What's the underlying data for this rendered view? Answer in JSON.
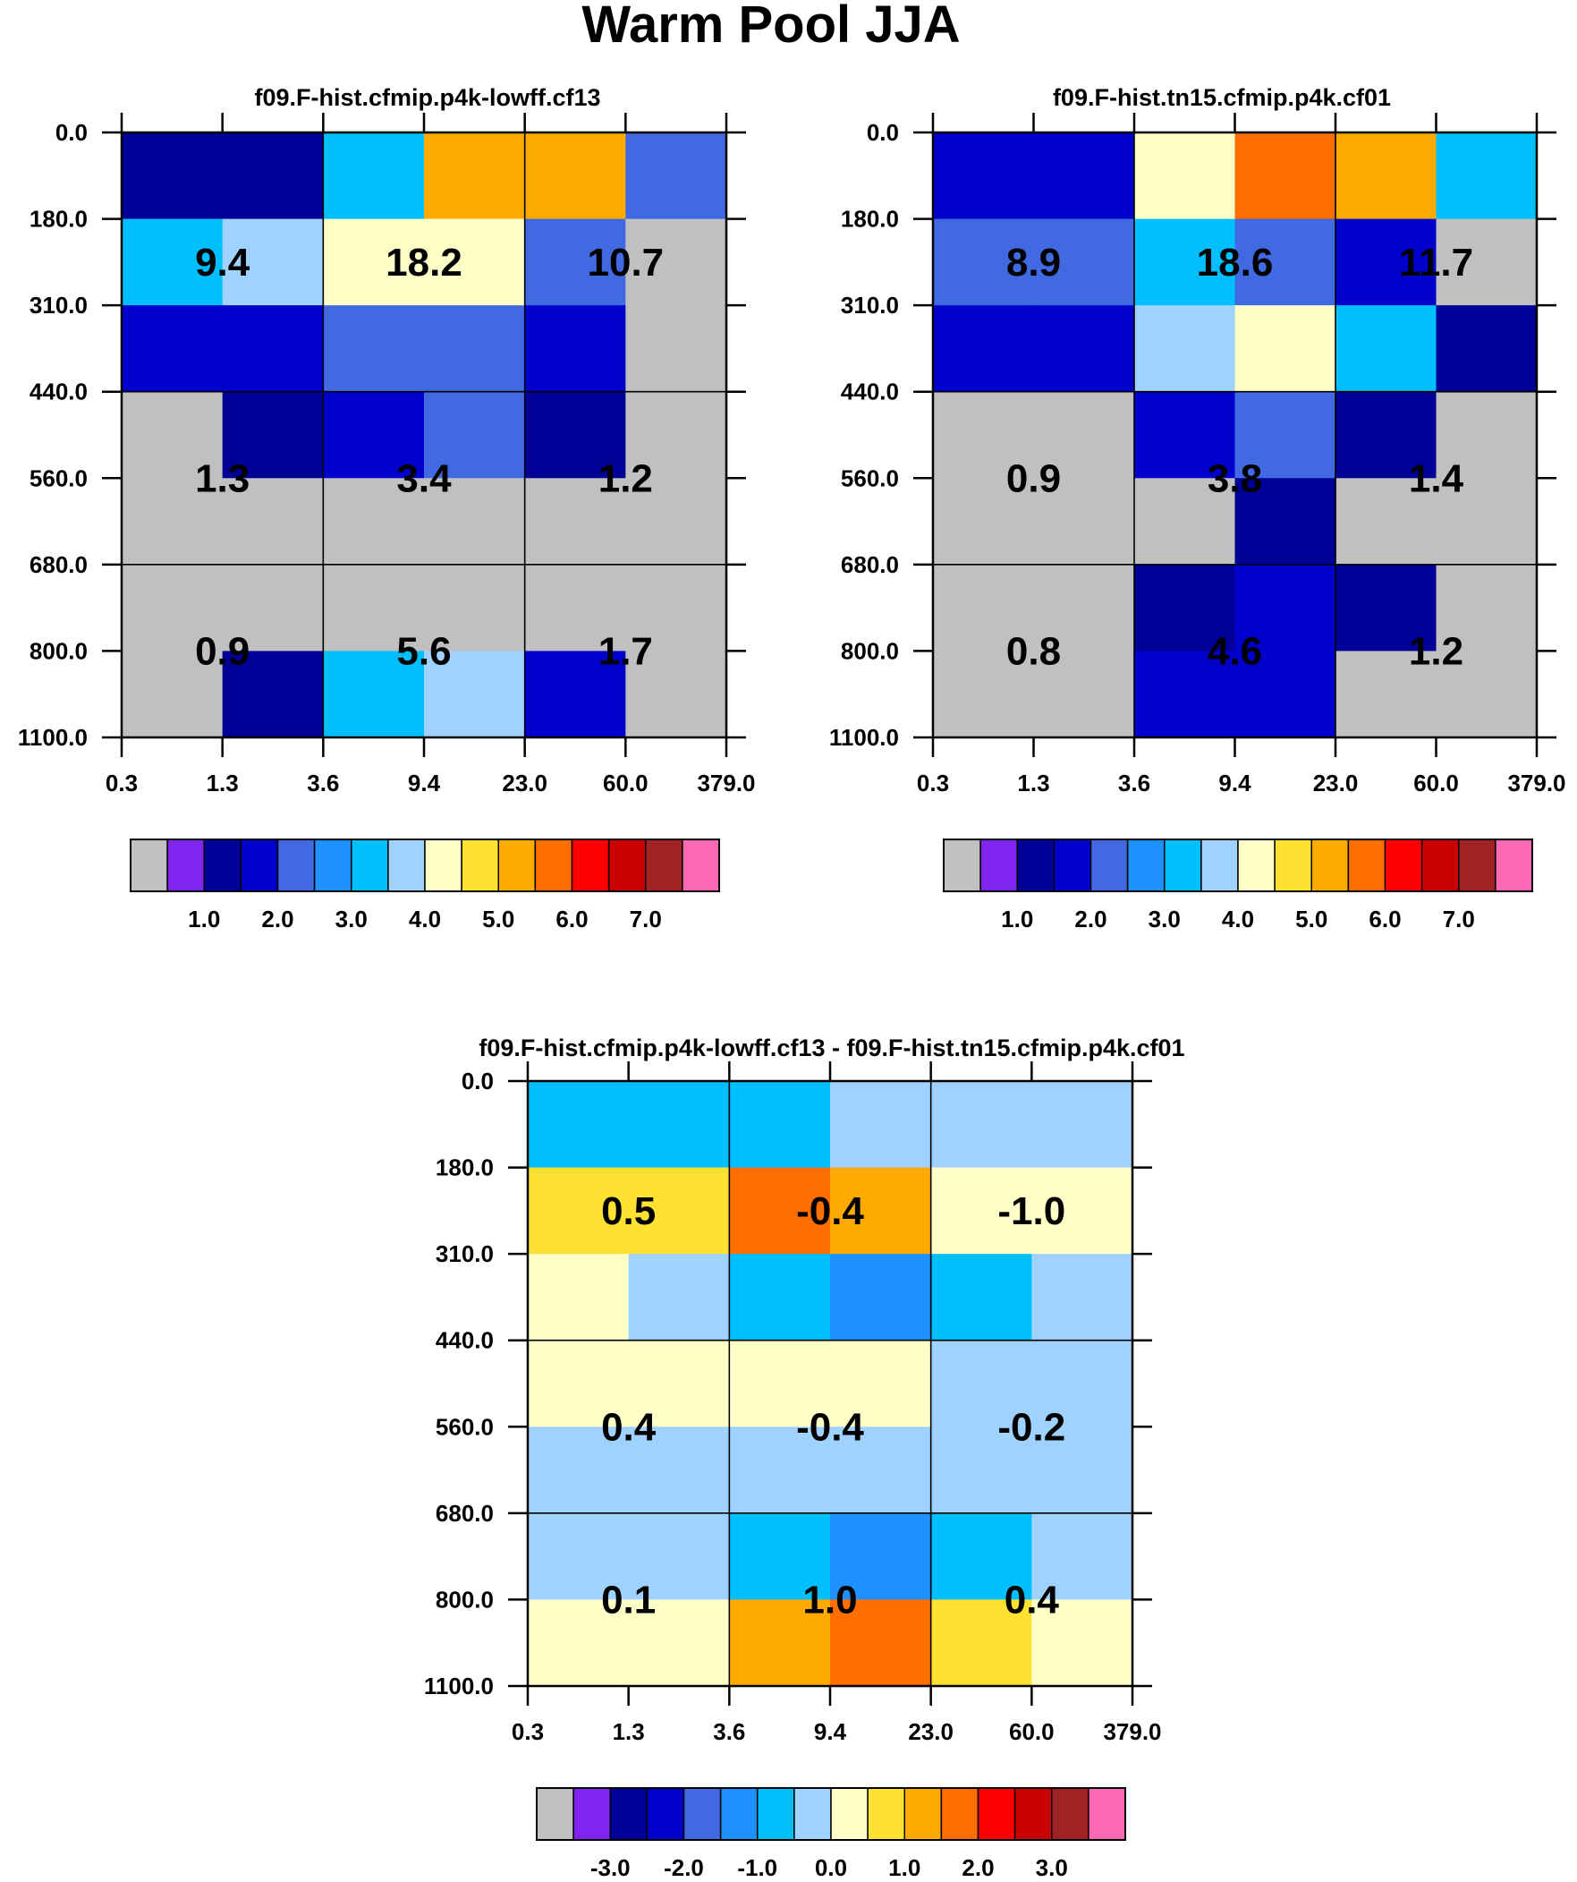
{
  "chart_data": {
    "type": "heatmap",
    "title": "Warm Pool JJA",
    "x_ticks": [
      "0.3",
      "1.3",
      "3.6",
      "9.4",
      "23.0",
      "60.0",
      "379.0"
    ],
    "y_ticks": [
      "0.0",
      "180.0",
      "310.0",
      "440.0",
      "560.0",
      "680.0",
      "800.0",
      "1100.0"
    ],
    "panels": [
      {
        "subtitle": "f09.F-hist.cfmip.p4k-lowff.cf13",
        "cells": [
          [
            1.25,
            1.25,
            3.25,
            5.25,
            5.25,
            2.25
          ],
          [
            3.25,
            3.75,
            4.25,
            4.25,
            2.25,
            0.25
          ],
          [
            1.75,
            1.75,
            2.25,
            2.25,
            1.75,
            0.25
          ],
          [
            0.25,
            1.25,
            1.75,
            2.25,
            1.25,
            0.25
          ],
          [
            0.25,
            0.25,
            0.25,
            0.25,
            0.25,
            0.25
          ],
          [
            0.25,
            0.25,
            0.25,
            0.25,
            0.25,
            0.25
          ],
          [
            0.25,
            1.25,
            3.25,
            3.75,
            1.75,
            0.25
          ]
        ],
        "labels": [
          [
            "9.4",
            "18.2",
            "10.7"
          ],
          [
            "1.3",
            "3.4",
            "1.2"
          ],
          [
            "0.9",
            "5.6",
            "1.7"
          ]
        ]
      },
      {
        "subtitle": "f09.F-hist.tn15.cfmip.p4k.cf01",
        "cells": [
          [
            1.75,
            1.75,
            4.25,
            5.75,
            5.25,
            3.25
          ],
          [
            2.25,
            2.25,
            3.25,
            2.25,
            1.75,
            0.25
          ],
          [
            1.75,
            1.75,
            3.75,
            4.25,
            3.25,
            1.25
          ],
          [
            0.25,
            0.25,
            1.75,
            2.25,
            1.25,
            0.25
          ],
          [
            0.25,
            0.25,
            0.25,
            1.25,
            0.25,
            0.25
          ],
          [
            0.25,
            0.25,
            1.25,
            1.75,
            1.25,
            0.25
          ],
          [
            0.25,
            0.25,
            1.75,
            1.75,
            0.25,
            0.25
          ]
        ],
        "labels": [
          [
            "8.9",
            "18.6",
            "11.7"
          ],
          [
            "0.9",
            "3.8",
            "1.4"
          ],
          [
            "0.8",
            "4.6",
            "1.2"
          ]
        ]
      },
      {
        "subtitle": "f09.F-hist.cfmip.p4k-lowff.cf13 - f09.F-hist.tn15.cfmip.p4k.cf01",
        "cells": [
          [
            -0.75,
            -0.75,
            -0.75,
            -0.25,
            -0.25,
            -0.25
          ],
          [
            0.75,
            0.75,
            1.75,
            1.25,
            0.25,
            0.25
          ],
          [
            0.25,
            -0.25,
            -0.75,
            -1.25,
            -0.75,
            -0.25
          ],
          [
            0.25,
            0.25,
            0.25,
            0.25,
            -0.25,
            -0.25
          ],
          [
            -0.25,
            -0.25,
            -0.25,
            -0.25,
            -0.25,
            -0.25
          ],
          [
            -0.25,
            -0.25,
            -0.75,
            -1.25,
            -0.75,
            -0.25
          ],
          [
            0.25,
            0.25,
            1.25,
            1.75,
            0.75,
            0.25
          ]
        ],
        "labels": [
          [
            "0.5",
            "-0.4",
            "-1.0"
          ],
          [
            "0.4",
            "-0.4",
            "-0.2"
          ],
          [
            "0.1",
            "1.0",
            "0.4"
          ]
        ]
      }
    ],
    "colorbars": [
      {
        "ticks": [
          "1.0",
          "2.0",
          "3.0",
          "4.0",
          "5.0",
          "6.0",
          "7.0"
        ],
        "colors": [
          "#c0c0c0",
          "#8224f0",
          "#000096",
          "#0000cd",
          "#4169e1",
          "#1e90ff",
          "#00bfff",
          "#a0d2ff",
          "#ffffc8",
          "#ffe132",
          "#ffaa00",
          "#ff6e00",
          "#ff0000",
          "#c80000",
          "#a02323",
          "#ff69b4"
        ]
      },
      {
        "ticks": [
          "1.0",
          "2.0",
          "3.0",
          "4.0",
          "5.0",
          "6.0",
          "7.0"
        ],
        "colors": [
          "#c0c0c0",
          "#8224f0",
          "#000096",
          "#0000cd",
          "#4169e1",
          "#1e90ff",
          "#00bfff",
          "#a0d2ff",
          "#ffffc8",
          "#ffe132",
          "#ffaa00",
          "#ff6e00",
          "#ff0000",
          "#c80000",
          "#a02323",
          "#ff69b4"
        ]
      },
      {
        "ticks": [
          "-3.0",
          "-2.0",
          "-1.0",
          "0.0",
          "1.0",
          "2.0",
          "3.0"
        ],
        "colors": [
          "#c0c0c0",
          "#8224f0",
          "#000096",
          "#0000cd",
          "#4169e1",
          "#1e90ff",
          "#00bfff",
          "#a0d2ff",
          "#ffffc8",
          "#ffe132",
          "#ffaa00",
          "#ff6e00",
          "#ff0000",
          "#c80000",
          "#a02323",
          "#ff69b4"
        ]
      }
    ],
    "panel_levels": [
      [
        0.5,
        1.0,
        1.5,
        2.0,
        2.5,
        3.0,
        3.5,
        4.0,
        4.5,
        5.0,
        5.5,
        6.0,
        6.5,
        7.0,
        7.5
      ],
      [
        0.5,
        1.0,
        1.5,
        2.0,
        2.5,
        3.0,
        3.5,
        4.0,
        4.5,
        5.0,
        5.5,
        6.0,
        6.5,
        7.0,
        7.5
      ],
      [
        -3.5,
        -3.0,
        -2.5,
        -2.0,
        -1.5,
        -1.0,
        -0.5,
        0.0,
        0.5,
        1.0,
        1.5,
        2.0,
        2.5,
        3.0,
        3.5
      ]
    ]
  }
}
